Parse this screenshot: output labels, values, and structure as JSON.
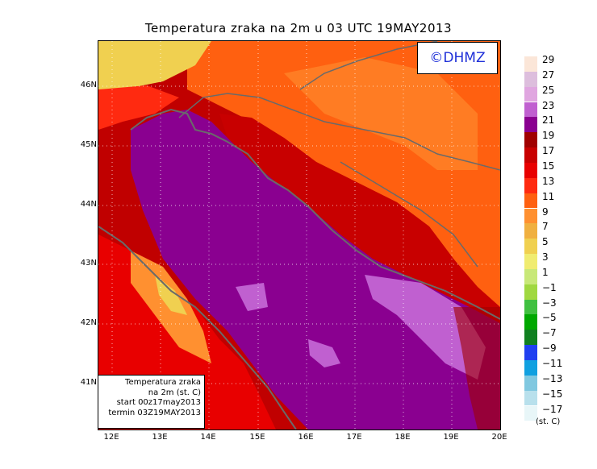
{
  "title": "Temperatura zraka na 2m u 03 UTC 19MAY2013",
  "logo": "©DHMZ",
  "info_box": {
    "line1": "Temperatura zraka",
    "line2": "na 2m (st. C)",
    "line3": "start 00z17may2013",
    "line4": "termin 03Z19MAY2013"
  },
  "lat_labels": [
    "46N",
    "45N",
    "44N",
    "43N",
    "42N",
    "41N"
  ],
  "lon_labels": [
    "12E",
    "13E",
    "14E",
    "15E",
    "16E",
    "17E",
    "18E",
    "19E",
    "20E"
  ],
  "legend": {
    "unit": "(st. C)",
    "levels": [
      "29",
      "27",
      "25",
      "23",
      "21",
      "19",
      "17",
      "15",
      "13",
      "11",
      "9",
      "7",
      "5",
      "3",
      "1",
      "−1",
      "−3",
      "−5",
      "−7",
      "−9",
      "−11",
      "−13",
      "−15",
      "−17"
    ],
    "colors": [
      "#fbe6d8",
      "#ddbedd",
      "#e0a6e0",
      "#c060d0",
      "#8a0090",
      "#a00000",
      "#c80000",
      "#e80000",
      "#ff2a10",
      "#ff6010",
      "#ff9030",
      "#f0b040",
      "#f0d050",
      "#f0ec70",
      "#c8e878",
      "#a0d840",
      "#40c040",
      "#00a800",
      "#108020",
      "#2040f0",
      "#10a0e0",
      "#80c8e0",
      "#b8e0ec",
      "#e8f6f8"
    ]
  }
}
